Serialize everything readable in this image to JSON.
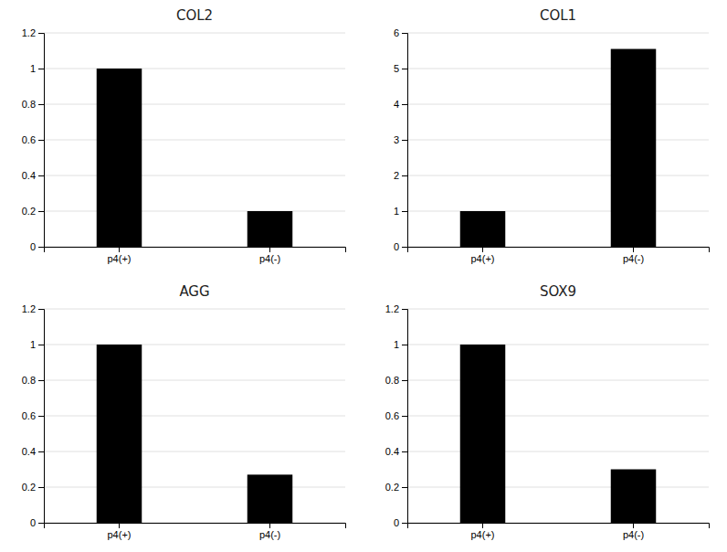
{
  "chart_data": [
    {
      "type": "bar",
      "title": "COL2",
      "categories": [
        "p4(+)",
        "p4(-)"
      ],
      "values": [
        1.0,
        0.2
      ],
      "color": "#000000",
      "ylim": [
        0,
        1.2
      ],
      "yticks": [
        0,
        0.2,
        0.4,
        0.6,
        0.8,
        1,
        1.2
      ],
      "grid": true
    },
    {
      "type": "bar",
      "title": "COL1",
      "categories": [
        "p4(+)",
        "p4(-)"
      ],
      "values": [
        1.0,
        5.55
      ],
      "color": "#000000",
      "ylim": [
        0,
        6
      ],
      "yticks": [
        0,
        1,
        2,
        3,
        4,
        5,
        6
      ],
      "grid": true
    },
    {
      "type": "bar",
      "title": "AGG",
      "categories": [
        "p4(+)",
        "p4(-)"
      ],
      "values": [
        1.0,
        0.27
      ],
      "color": "#000000",
      "ylim": [
        0,
        1.2
      ],
      "yticks": [
        0,
        0.2,
        0.4,
        0.6,
        0.8,
        1,
        1.2
      ],
      "grid": true
    },
    {
      "type": "bar",
      "title": "SOX9",
      "categories": [
        "p4(+)",
        "p4(-)"
      ],
      "values": [
        1.0,
        0.3
      ],
      "color": "#000000",
      "ylim": [
        0,
        1.2
      ],
      "yticks": [
        0,
        0.2,
        0.4,
        0.6,
        0.8,
        1,
        1.2
      ],
      "grid": true
    }
  ]
}
